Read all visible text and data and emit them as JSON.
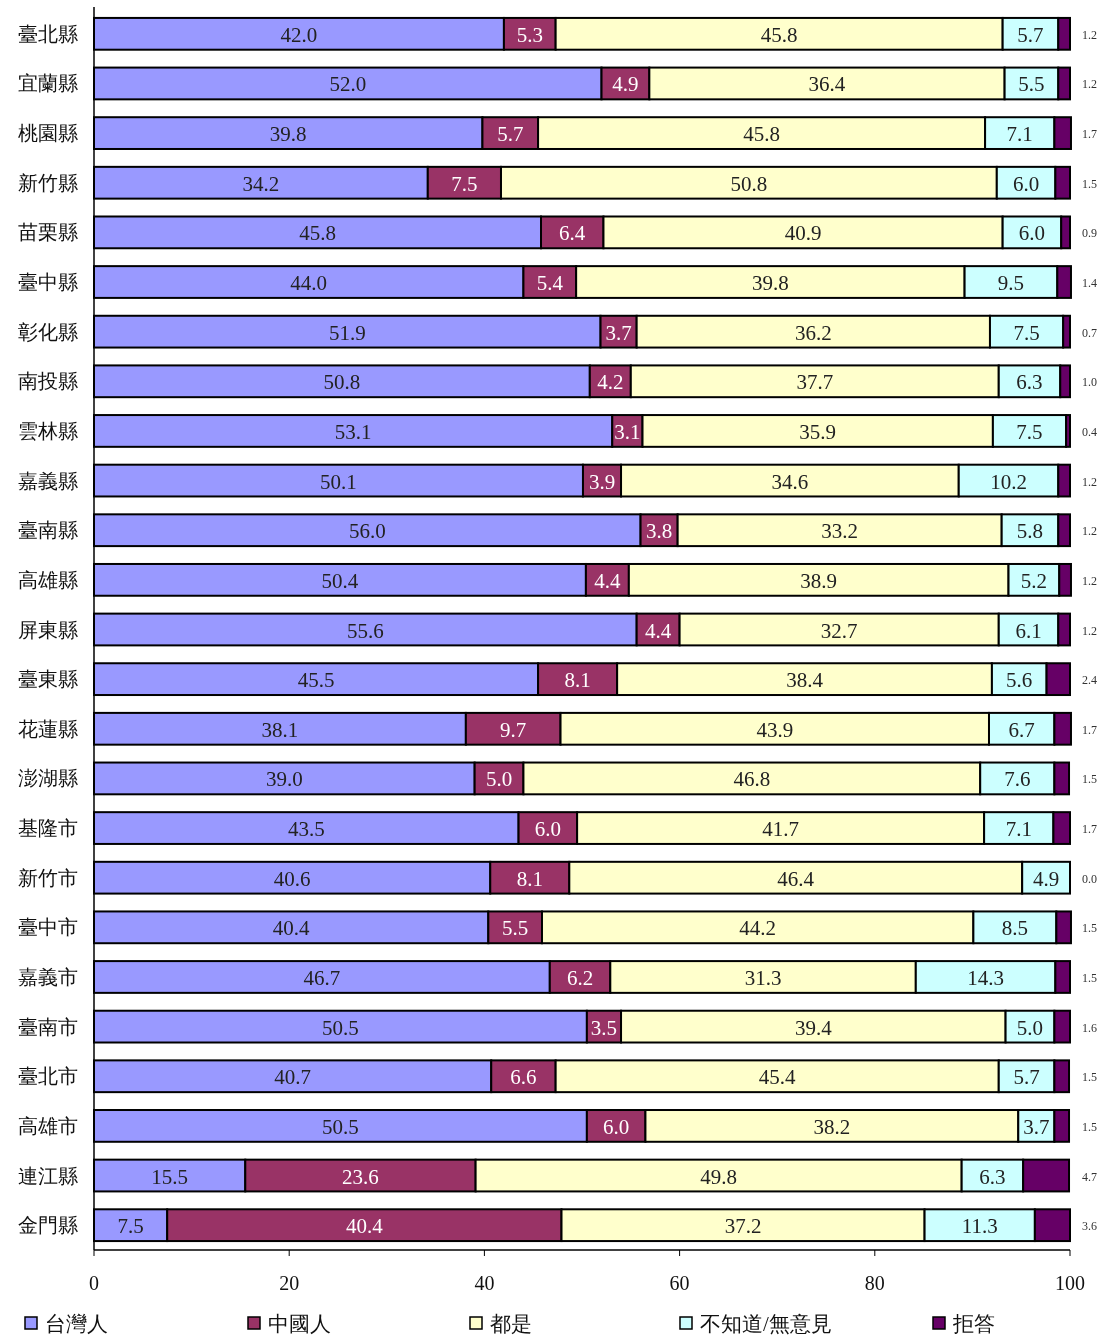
{
  "chart_data": {
    "type": "bar",
    "orientation": "horizontal",
    "stacked": true,
    "legend": "bottom",
    "grid": false,
    "categories": [
      "臺北縣",
      "宜蘭縣",
      "桃園縣",
      "新竹縣",
      "苗栗縣",
      "臺中縣",
      "彰化縣",
      "南投縣",
      "雲林縣",
      "嘉義縣",
      "臺南縣",
      "高雄縣",
      "屏東縣",
      "臺東縣",
      "花蓮縣",
      "澎湖縣",
      "基隆市",
      "新竹市",
      "臺中市",
      "嘉義市",
      "臺南市",
      "臺北市",
      "高雄市",
      "連江縣",
      "金門縣"
    ],
    "xlim": [
      0,
      100
    ],
    "xticks": [
      0,
      20,
      40,
      60,
      80,
      100
    ],
    "series": [
      {
        "name": "台灣人",
        "color": "#9999ff",
        "values": [
          42.0,
          52.0,
          39.8,
          34.2,
          45.8,
          44.0,
          51.9,
          50.8,
          53.1,
          50.1,
          56.0,
          50.4,
          55.6,
          45.5,
          38.1,
          39.0,
          43.5,
          40.6,
          40.4,
          46.7,
          50.5,
          40.7,
          50.5,
          15.5,
          7.5
        ],
        "value_labels": [
          "42.0",
          "52.0",
          "39.8",
          "34.2",
          "45.8",
          "44.0",
          "51.9",
          "50.8",
          "53.1",
          "50.1",
          "56.0",
          "50.4",
          "55.6",
          "45.5",
          "38.1",
          "39.0",
          "43.5",
          "40.6",
          "40.4",
          "46.7",
          "50.5",
          "40.7",
          "50.5",
          "15.5",
          "7.5"
        ]
      },
      {
        "name": "中國人",
        "color": "#993366",
        "values": [
          5.3,
          4.9,
          5.7,
          7.5,
          6.4,
          5.4,
          3.7,
          4.2,
          3.1,
          3.9,
          3.8,
          4.4,
          4.4,
          8.1,
          9.7,
          5.0,
          6.0,
          8.1,
          5.5,
          6.2,
          3.5,
          6.6,
          6.0,
          23.6,
          40.4
        ],
        "value_labels": [
          "5.3",
          "4.9",
          "5.7",
          "7.5",
          "6.4",
          "5.4",
          "3.7",
          "4.2",
          "3.1",
          "3.9",
          "3.8",
          "4.4",
          "4.4",
          "8.1",
          "9.7",
          "5.0",
          "6.0",
          "8.1",
          "5.5",
          "6.2",
          "3.5",
          "6.6",
          "6.0",
          "23.6",
          "40.4"
        ]
      },
      {
        "name": "都是",
        "color": "#ffffcc",
        "values": [
          45.8,
          36.4,
          45.8,
          50.8,
          40.9,
          39.8,
          36.2,
          37.7,
          35.9,
          34.6,
          33.2,
          38.9,
          32.7,
          38.4,
          43.9,
          46.8,
          41.7,
          46.4,
          44.2,
          31.3,
          39.4,
          45.4,
          38.2,
          49.8,
          37.2
        ],
        "value_labels": [
          "45.8",
          "36.4",
          "45.8",
          "50.8",
          "40.9",
          "39.8",
          "36.2",
          "37.7",
          "35.9",
          "34.6",
          "33.2",
          "38.9",
          "32.7",
          "38.4",
          "43.9",
          "46.8",
          "41.7",
          "46.4",
          "44.2",
          "31.3",
          "39.4",
          "45.4",
          "38.2",
          "49.8",
          "37.2"
        ]
      },
      {
        "name": "不知道/無意見",
        "color": "#ccffff",
        "values": [
          5.7,
          5.5,
          7.1,
          6.0,
          6.0,
          9.5,
          7.5,
          6.3,
          7.5,
          10.2,
          5.8,
          5.2,
          6.1,
          5.6,
          6.7,
          7.6,
          7.1,
          4.9,
          8.5,
          14.3,
          5.0,
          5.7,
          3.7,
          6.3,
          11.3
        ],
        "value_labels": [
          "5.7",
          "5.5",
          "7.1",
          "6.0",
          "6.0",
          "9.5",
          "7.5",
          "6.3",
          "7.5",
          "10.2",
          "5.8",
          "5.2",
          "6.1",
          "5.6",
          "6.7",
          "7.6",
          "7.1",
          "4.9",
          "8.5",
          "14.3",
          "5.0",
          "5.7",
          "3.7",
          "6.3",
          "11.3"
        ]
      },
      {
        "name": "拒答",
        "color": "#660066",
        "values": [
          1.2,
          1.2,
          1.7,
          1.5,
          0.9,
          1.4,
          0.7,
          1.0,
          0.4,
          1.2,
          1.2,
          1.2,
          1.2,
          2.4,
          1.7,
          1.5,
          1.7,
          0.0,
          1.5,
          1.5,
          1.6,
          1.5,
          1.5,
          4.7,
          3.6
        ],
        "value_labels": [
          "1.2",
          "1.2",
          "1.7",
          "1.5",
          "0.9",
          "1.4",
          "0.7",
          "1.0",
          "0.4",
          "1.2",
          "1.2",
          "1.2",
          "1.2",
          "2.4",
          "1.7",
          "1.5",
          "1.7",
          "0.0",
          "1.5",
          "1.5",
          "1.6",
          "1.5",
          "1.5",
          "4.7",
          "3.6"
        ]
      }
    ]
  }
}
